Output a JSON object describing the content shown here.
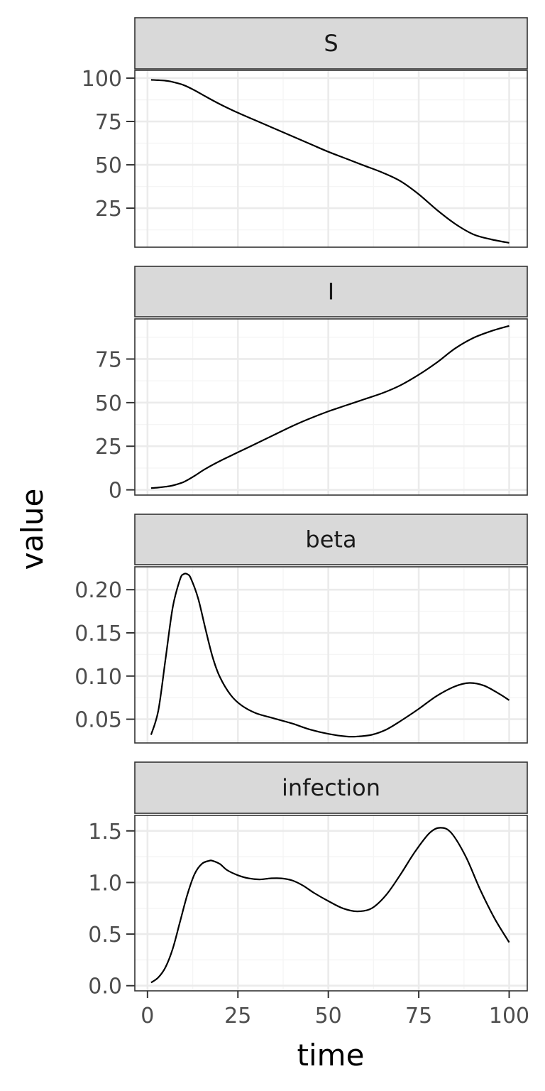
{
  "chart_data": {
    "type": "line",
    "layout": "facets-stacked-vertically",
    "xlabel": "time",
    "ylabel": "value",
    "xlim": [
      -3.5,
      105
    ],
    "x_ticks": [
      0,
      25,
      50,
      75,
      100
    ],
    "x_tick_labels": [
      "0",
      "25",
      "50",
      "75",
      "100"
    ],
    "grid": true,
    "theme": "bw",
    "colors": {
      "line": "#000000",
      "strip_fill": "#d9d9d9",
      "panel_border": "#333333",
      "grid_major": "#ebebeb",
      "grid_minor": "#f5f5f5"
    },
    "facets": [
      {
        "label": "S",
        "ylim": [
          2.5,
          104.5
        ],
        "y_ticks": [
          25,
          50,
          75,
          100
        ],
        "y_tick_labels": [
          "25",
          "50",
          "75",
          "100"
        ],
        "x": [
          1,
          3,
          5,
          7,
          10,
          13,
          16,
          20,
          25,
          30,
          35,
          40,
          45,
          50,
          55,
          60,
          65,
          70,
          75,
          80,
          85,
          90,
          95,
          100
        ],
        "y": [
          99,
          98.8,
          98.5,
          97.8,
          96,
          93,
          89.5,
          85,
          80,
          75.5,
          71,
          66.5,
          62,
          57.5,
          53.5,
          49.5,
          45.5,
          40.5,
          33,
          24,
          16,
          10,
          7,
          5
        ]
      },
      {
        "label": "I",
        "ylim": [
          -3,
          98
        ],
        "y_ticks": [
          0,
          25,
          50,
          75
        ],
        "y_tick_labels": [
          "0",
          "25",
          "50",
          "75"
        ],
        "x": [
          1,
          3,
          5,
          7,
          10,
          13,
          16,
          20,
          25,
          30,
          35,
          40,
          45,
          50,
          55,
          60,
          65,
          70,
          75,
          80,
          85,
          90,
          95,
          100
        ],
        "y": [
          1,
          1.3,
          1.8,
          2.5,
          4.5,
          8,
          12,
          16.5,
          21.5,
          26.5,
          31.5,
          36.5,
          41,
          45,
          48.5,
          52,
          55.5,
          60,
          66,
          73,
          81,
          87,
          91,
          94
        ]
      },
      {
        "label": "beta",
        "ylim": [
          0.0225,
          0.2265
        ],
        "y_ticks": [
          0.05,
          0.1,
          0.15,
          0.2
        ],
        "y_tick_labels": [
          "0.05",
          "0.10",
          "0.15",
          "0.20"
        ],
        "x": [
          1,
          3,
          5,
          7,
          9,
          10,
          11,
          12,
          14,
          16,
          18,
          20,
          23,
          26,
          30,
          35,
          40,
          45,
          50,
          55,
          58,
          62,
          66,
          70,
          75,
          80,
          85,
          89,
          93,
          97,
          100
        ],
        "y": [
          0.032,
          0.06,
          0.12,
          0.18,
          0.212,
          0.218,
          0.218,
          0.213,
          0.19,
          0.155,
          0.122,
          0.099,
          0.078,
          0.066,
          0.057,
          0.051,
          0.045,
          0.038,
          0.033,
          0.03,
          0.03,
          0.032,
          0.038,
          0.048,
          0.062,
          0.077,
          0.088,
          0.092,
          0.089,
          0.08,
          0.072
        ]
      },
      {
        "label": "infection",
        "ylim": [
          -0.05,
          1.65
        ],
        "y_ticks": [
          0.0,
          0.5,
          1.0,
          1.5
        ],
        "y_tick_labels": [
          "0.0",
          "0.5",
          "1.0",
          "1.5"
        ],
        "x": [
          1,
          3,
          5,
          7,
          9,
          11,
          13,
          15,
          17,
          18,
          20,
          22,
          25,
          28,
          31,
          34,
          37,
          40,
          43,
          46,
          50,
          54,
          58,
          62,
          66,
          70,
          74,
          78,
          81,
          84,
          88,
          92,
          96,
          100
        ],
        "y": [
          0.03,
          0.08,
          0.18,
          0.36,
          0.62,
          0.88,
          1.08,
          1.18,
          1.21,
          1.21,
          1.18,
          1.12,
          1.07,
          1.04,
          1.03,
          1.04,
          1.04,
          1.02,
          0.97,
          0.9,
          0.82,
          0.75,
          0.72,
          0.75,
          0.88,
          1.08,
          1.3,
          1.48,
          1.53,
          1.48,
          1.25,
          0.93,
          0.65,
          0.42
        ]
      }
    ]
  }
}
